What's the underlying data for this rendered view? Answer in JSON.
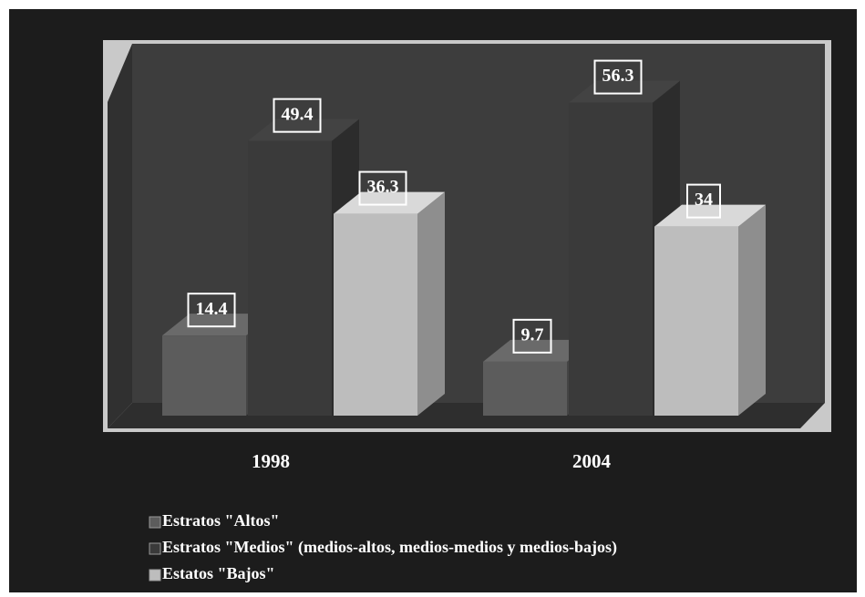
{
  "chart_data": {
    "type": "bar3d",
    "categories": [
      "1998",
      "2004"
    ],
    "series": [
      {
        "name": "Estratos \"Altos\"",
        "color": "#5c5c5c",
        "values": [
          14.4,
          9.7
        ]
      },
      {
        "name": "Estratos \"Medios\" (medios-altos, medios-medios y medios-bajos)",
        "color": "#3a3a3a",
        "values": [
          49.4,
          56.3
        ]
      },
      {
        "name": "Estatos \"Bajos\"",
        "color": "#bdbdbd",
        "values": [
          36.3,
          34
        ]
      }
    ]
  }
}
